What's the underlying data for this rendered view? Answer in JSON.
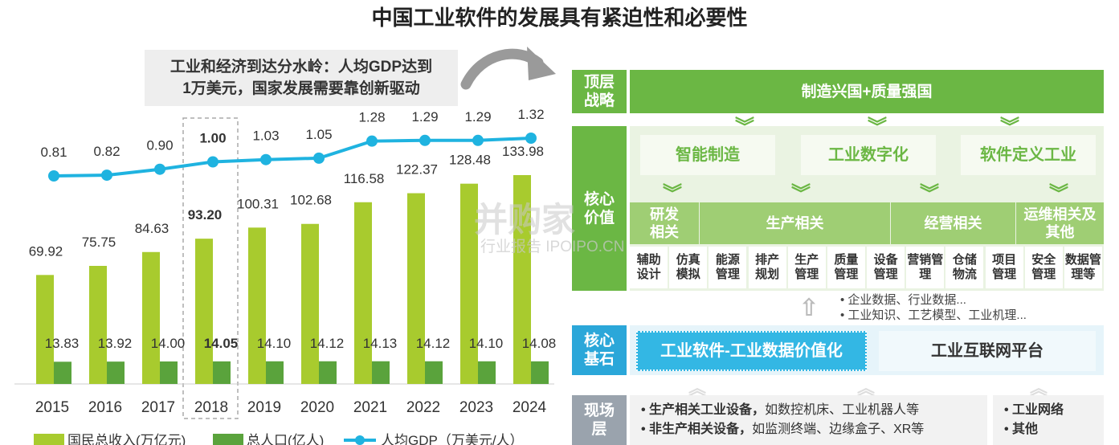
{
  "title": "中国工业软件的发展具有紧迫性和必要性",
  "callout": {
    "line1": "工业和经济到达分水岭：人均GDP达到",
    "line2": "1万美元，国家发展需要靠创新驱动"
  },
  "chart_data": {
    "type": "bar",
    "categories": [
      "2015",
      "2016",
      "2017",
      "2018",
      "2019",
      "2020",
      "2021",
      "2022",
      "2023",
      "2024"
    ],
    "series": [
      {
        "name": "国民总收入(万亿元)",
        "type": "bar",
        "color": "#a8cb2e",
        "values": [
          69.92,
          75.75,
          84.63,
          93.2,
          100.31,
          102.68,
          116.58,
          122.37,
          128.48,
          133.98
        ]
      },
      {
        "name": "总人口(亿人)",
        "type": "bar",
        "color": "#5aa33c",
        "values": [
          13.83,
          13.92,
          14.0,
          14.05,
          14.1,
          14.12,
          14.13,
          14.12,
          14.1,
          14.08
        ]
      },
      {
        "name": "人均GDP（万美元/人）",
        "type": "line",
        "color": "#1fb3e0",
        "values": [
          0.81,
          0.82,
          0.9,
          1.0,
          1.03,
          1.05,
          1.28,
          1.29,
          1.29,
          1.32
        ]
      }
    ],
    "highlight": "2018",
    "legend_position": "bottom"
  },
  "diagram": {
    "top_label": "顶层\n战略",
    "top_content": "制造兴国+质量强国",
    "core_label": "核心\n价值",
    "pillars": [
      "智能制造",
      "工业数字化",
      "软件定义工业"
    ],
    "groups": [
      "研发\n相关",
      "生产相关",
      "经营相关",
      "运维相关及\n其他"
    ],
    "items": [
      "辅助\n设计",
      "仿真\n模拟",
      "能源\n管理",
      "排产\n规划",
      "生产\n管理",
      "质量\n管理",
      "设备\n管理",
      "营销管\n理",
      "仓储\n物流",
      "项目\n管理",
      "安全\n管理",
      "数据管\n理等"
    ],
    "data_notes": [
      "企业数据、行业数据...",
      "工业知识、工艺模型、工业机理..."
    ],
    "base_label": "核心\n基石",
    "base_left": "工业软件-工业数据价值化",
    "base_right": "工业互联网平台",
    "field_label": "现场\n层",
    "field_items": [
      {
        "bold": "生产相关工业设备，",
        "text": "如数控机床、工业机器人等"
      },
      {
        "bold": "非生产相关设备，",
        "text": "如监测终端、边缘盒子、XR等"
      }
    ],
    "field_right": [
      "工业网络",
      "其他"
    ]
  },
  "watermark": {
    "main": "并购家",
    "sub": "行业报告 IPOIPO.CN"
  }
}
